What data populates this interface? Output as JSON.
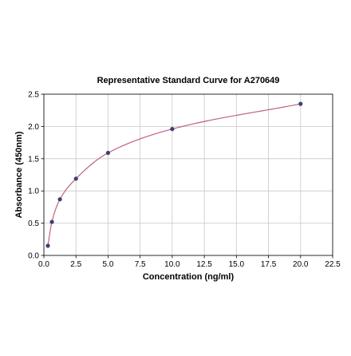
{
  "chart_data": {
    "type": "scatter",
    "title": "Representative Standard Curve for A270649",
    "xlabel": "Concentration (ng/ml)",
    "ylabel": "Absorbance (450nm)",
    "xlim": [
      0,
      22.5
    ],
    "ylim": [
      0,
      2.5
    ],
    "x_ticks": [
      "0.0",
      "2.5",
      "5.0",
      "7.5",
      "10.0",
      "12.5",
      "15.0",
      "17.5",
      "20.0",
      "22.5"
    ],
    "y_ticks": [
      "0.0",
      "0.5",
      "1.0",
      "1.5",
      "2.0",
      "2.5"
    ],
    "grid": true,
    "series": [
      {
        "points": [
          {
            "x": 0.3125,
            "y": 0.15
          },
          {
            "x": 0.625,
            "y": 0.52
          },
          {
            "x": 1.25,
            "y": 0.87
          },
          {
            "x": 2.5,
            "y": 1.19
          },
          {
            "x": 5.0,
            "y": 1.59
          },
          {
            "x": 10.0,
            "y": 1.96
          },
          {
            "x": 20.0,
            "y": 2.35
          }
        ],
        "fit_curve": true
      }
    ],
    "colors": {
      "point": "#3d3d7a",
      "curve": "#c06080",
      "grid": "#c8c8c8",
      "axis": "#000000"
    }
  }
}
